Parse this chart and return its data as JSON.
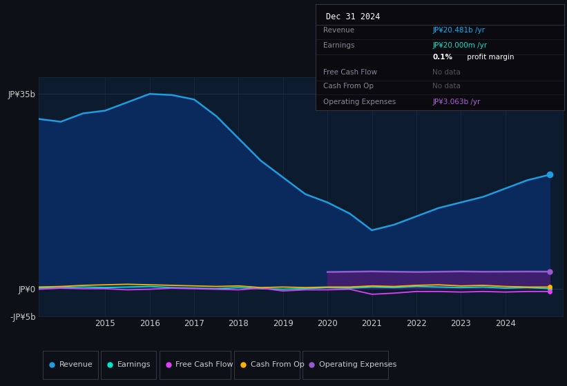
{
  "background_color": "#0d1117",
  "plot_bg_color": "#0d1b2e",
  "grid_color": "#253550",
  "text_color": "#cccccc",
  "years": [
    2013.0,
    2013.5,
    2014.0,
    2014.5,
    2015.0,
    2015.5,
    2016.0,
    2016.5,
    2017.0,
    2017.5,
    2018.0,
    2018.5,
    2019.0,
    2019.5,
    2020.0,
    2020.5,
    2021.0,
    2021.5,
    2022.0,
    2022.5,
    2023.0,
    2023.5,
    2024.0,
    2024.5,
    2025.0
  ],
  "revenue": [
    33,
    30.5,
    30,
    31.5,
    32,
    33.5,
    35,
    34.8,
    34,
    31,
    27,
    23,
    20,
    17,
    15.5,
    13.5,
    10.5,
    11.5,
    13,
    14.5,
    15.5,
    16.5,
    18,
    19.5,
    20.481
  ],
  "earnings": [
    0.3,
    0.1,
    0.2,
    0.3,
    0.2,
    0.3,
    0.4,
    0.2,
    0.1,
    0.0,
    0.2,
    0.0,
    -0.1,
    0.0,
    0.2,
    0.1,
    0.3,
    0.2,
    0.4,
    0.3,
    0.2,
    0.3,
    0.1,
    0.2,
    0.02
  ],
  "free_cash_flow": [
    0.0,
    -0.1,
    0.1,
    0.0,
    0.0,
    -0.2,
    -0.1,
    0.1,
    0.0,
    -0.1,
    -0.2,
    0.1,
    -0.4,
    -0.2,
    -0.2,
    -0.1,
    -1.0,
    -0.8,
    -0.5,
    -0.5,
    -0.6,
    -0.5,
    -0.6,
    -0.5,
    -0.5
  ],
  "cash_from_op": [
    0.5,
    0.3,
    0.4,
    0.6,
    0.7,
    0.8,
    0.7,
    0.6,
    0.5,
    0.4,
    0.5,
    0.2,
    0.3,
    0.2,
    0.3,
    0.3,
    0.5,
    0.4,
    0.6,
    0.7,
    0.5,
    0.6,
    0.4,
    0.3,
    0.3
  ],
  "operating_expenses_x": [
    2020.0,
    2020.5,
    2021.0,
    2021.5,
    2022.0,
    2022.5,
    2023.0,
    2023.5,
    2024.0,
    2024.5,
    2025.0
  ],
  "operating_expenses": [
    3.0,
    3.05,
    3.1,
    3.05,
    3.0,
    3.05,
    3.1,
    3.05,
    3.063,
    3.08,
    3.063
  ],
  "revenue_color": "#1e9de0",
  "earnings_color": "#00e5cc",
  "free_cash_flow_color": "#e040fb",
  "cash_from_op_color": "#ffb300",
  "operating_expenses_color": "#9b59d0",
  "operating_expenses_fill_color": "#3d1f6e",
  "revenue_fill_color": "#0a2a5e",
  "ylim_min": -5,
  "ylim_max": 38,
  "yticks": [
    -5,
    0,
    35
  ],
  "ytick_labels": [
    "-JP¥5b",
    "JP¥0",
    "JP¥35b"
  ],
  "xlim_min": 2013.5,
  "xlim_max": 2025.3,
  "xticks": [
    2015,
    2016,
    2017,
    2018,
    2019,
    2020,
    2021,
    2022,
    2023,
    2024
  ],
  "info_box": {
    "title": "Dec 31 2024",
    "rows": [
      {
        "label": "Revenue",
        "value": "JP¥20.481b /yr",
        "value_color": "#00b4ff"
      },
      {
        "label": "Earnings",
        "value": "JP¥20.000m /yr",
        "value_color": "#00e5cc"
      },
      {
        "label": "",
        "value": "0.1% profit margin",
        "value_color": "#ffffff",
        "bold_part": "0.1%"
      },
      {
        "label": "Free Cash Flow",
        "value": "No data",
        "value_color": "#555555"
      },
      {
        "label": "Cash From Op",
        "value": "No data",
        "value_color": "#555555"
      },
      {
        "label": "Operating Expenses",
        "value": "JP¥3.063b /yr",
        "value_color": "#b060e0"
      }
    ]
  },
  "legend_items": [
    {
      "label": "Revenue",
      "color": "#1e9de0"
    },
    {
      "label": "Earnings",
      "color": "#00e5cc"
    },
    {
      "label": "Free Cash Flow",
      "color": "#e040fb"
    },
    {
      "label": "Cash From Op",
      "color": "#ffb300"
    },
    {
      "label": "Operating Expenses",
      "color": "#9b59d0"
    }
  ]
}
